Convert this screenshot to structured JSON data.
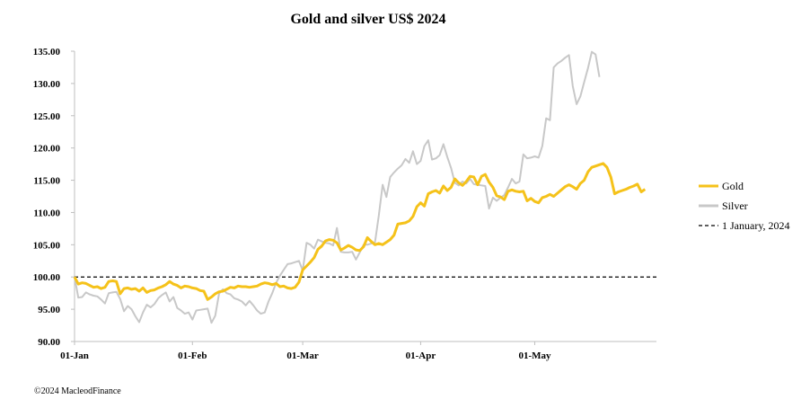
{
  "chart_data": {
    "type": "line",
    "title": "Gold and silver  US$ 2024",
    "xlabel": "",
    "ylabel": "",
    "ylim": [
      90,
      135
    ],
    "yticks": [
      "90.00",
      "95.00",
      "100.00",
      "105.00",
      "110.00",
      "115.00",
      "120.00",
      "125.00",
      "130.00",
      "135.00"
    ],
    "xticks": [
      {
        "label": "01-Jan",
        "day": 1
      },
      {
        "label": "01-Feb",
        "day": 32
      },
      {
        "label": "01-Mar",
        "day": 61
      },
      {
        "label": "01-Apr",
        "day": 92
      },
      {
        "label": "01-May",
        "day": 122
      }
    ],
    "xlim_days": [
      1,
      154
    ],
    "legend_position": "right",
    "reference_line": {
      "name": "1 January, 2024",
      "value": 100,
      "style": "dashed",
      "color": "#000000"
    },
    "series": [
      {
        "name": "Gold",
        "color": "#f5c21a",
        "points": [
          [
            1,
            100.0
          ],
          [
            2,
            98.9
          ],
          [
            3,
            99.1
          ],
          [
            4,
            99.0
          ],
          [
            5,
            98.7
          ],
          [
            6,
            98.4
          ],
          [
            7,
            98.5
          ],
          [
            8,
            98.2
          ],
          [
            9,
            98.4
          ],
          [
            10,
            99.3
          ],
          [
            11,
            99.4
          ],
          [
            12,
            99.3
          ],
          [
            13,
            97.4
          ],
          [
            14,
            98.2
          ],
          [
            15,
            98.3
          ],
          [
            16,
            98.1
          ],
          [
            17,
            98.2
          ],
          [
            18,
            97.8
          ],
          [
            19,
            98.3
          ],
          [
            20,
            97.6
          ],
          [
            21,
            97.9
          ],
          [
            22,
            98.0
          ],
          [
            23,
            98.3
          ],
          [
            24,
            98.5
          ],
          [
            25,
            98.8
          ],
          [
            26,
            99.3
          ],
          [
            27,
            98.9
          ],
          [
            28,
            98.7
          ],
          [
            29,
            98.3
          ],
          [
            30,
            98.6
          ],
          [
            31,
            98.5
          ],
          [
            32,
            98.3
          ],
          [
            33,
            98.2
          ],
          [
            34,
            97.9
          ],
          [
            35,
            97.8
          ],
          [
            36,
            96.5
          ],
          [
            37,
            96.9
          ],
          [
            38,
            97.4
          ],
          [
            39,
            97.7
          ],
          [
            40,
            97.8
          ],
          [
            41,
            98.1
          ],
          [
            42,
            98.4
          ],
          [
            43,
            98.3
          ],
          [
            44,
            98.6
          ],
          [
            45,
            98.5
          ],
          [
            46,
            98.5
          ],
          [
            47,
            98.4
          ],
          [
            48,
            98.5
          ],
          [
            49,
            98.6
          ],
          [
            50,
            98.9
          ],
          [
            51,
            99.1
          ],
          [
            52,
            99.0
          ],
          [
            53,
            98.8
          ],
          [
            54,
            99.0
          ],
          [
            55,
            98.5
          ],
          [
            56,
            98.6
          ],
          [
            57,
            98.3
          ],
          [
            58,
            98.2
          ],
          [
            59,
            98.4
          ],
          [
            60,
            99.2
          ],
          [
            61,
            101.1
          ],
          [
            62,
            101.7
          ],
          [
            63,
            102.3
          ],
          [
            64,
            103.0
          ],
          [
            65,
            104.3
          ],
          [
            66,
            104.8
          ],
          [
            67,
            105.6
          ],
          [
            68,
            105.8
          ],
          [
            69,
            105.7
          ],
          [
            70,
            105.3
          ],
          [
            71,
            104.2
          ],
          [
            72,
            104.5
          ],
          [
            73,
            104.9
          ],
          [
            74,
            104.6
          ],
          [
            75,
            104.2
          ],
          [
            76,
            104.1
          ],
          [
            77,
            104.7
          ],
          [
            78,
            106.1
          ],
          [
            79,
            105.5
          ],
          [
            80,
            105.0
          ],
          [
            81,
            105.2
          ],
          [
            82,
            105.0
          ],
          [
            83,
            105.4
          ],
          [
            84,
            105.8
          ],
          [
            85,
            106.5
          ],
          [
            86,
            108.2
          ],
          [
            87,
            108.3
          ],
          [
            88,
            108.4
          ],
          [
            89,
            108.7
          ],
          [
            90,
            109.4
          ],
          [
            91,
            110.9
          ],
          [
            92,
            111.5
          ],
          [
            93,
            111.0
          ],
          [
            94,
            112.9
          ],
          [
            95,
            113.2
          ],
          [
            96,
            113.4
          ],
          [
            97,
            113.0
          ],
          [
            98,
            114.1
          ],
          [
            99,
            113.4
          ],
          [
            100,
            113.9
          ],
          [
            101,
            115.2
          ],
          [
            102,
            114.6
          ],
          [
            103,
            114.2
          ],
          [
            104,
            114.8
          ],
          [
            105,
            115.6
          ],
          [
            106,
            115.5
          ],
          [
            107,
            114.3
          ],
          [
            108,
            115.6
          ],
          [
            109,
            115.9
          ],
          [
            110,
            114.7
          ],
          [
            111,
            113.9
          ],
          [
            112,
            112.6
          ],
          [
            113,
            112.4
          ],
          [
            114,
            112.0
          ],
          [
            115,
            113.3
          ],
          [
            116,
            113.5
          ],
          [
            117,
            113.3
          ],
          [
            118,
            113.2
          ],
          [
            119,
            113.3
          ],
          [
            120,
            111.8
          ],
          [
            121,
            112.2
          ],
          [
            122,
            111.7
          ],
          [
            123,
            111.5
          ],
          [
            124,
            112.3
          ],
          [
            125,
            112.5
          ],
          [
            126,
            112.8
          ],
          [
            127,
            112.5
          ],
          [
            128,
            113.0
          ],
          [
            129,
            113.5
          ],
          [
            130,
            114.0
          ],
          [
            131,
            114.3
          ],
          [
            132,
            114.0
          ],
          [
            133,
            113.6
          ],
          [
            134,
            114.5
          ],
          [
            135,
            115.0
          ],
          [
            136,
            116.3
          ],
          [
            137,
            117.0
          ],
          [
            138,
            117.2
          ],
          [
            139,
            117.4
          ],
          [
            140,
            117.6
          ],
          [
            141,
            117.0
          ],
          [
            142,
            115.5
          ],
          [
            143,
            112.9
          ],
          [
            144,
            113.2
          ],
          [
            145,
            113.4
          ],
          [
            146,
            113.6
          ],
          [
            147,
            113.9
          ],
          [
            148,
            114.1
          ],
          [
            149,
            114.4
          ],
          [
            150,
            113.2
          ],
          [
            151,
            113.6
          ]
        ]
      },
      {
        "name": "Silver",
        "color": "#c8c8c8",
        "points": [
          [
            1,
            100.0
          ],
          [
            2,
            96.8
          ],
          [
            3,
            96.9
          ],
          [
            4,
            97.6
          ],
          [
            5,
            97.3
          ],
          [
            6,
            97.1
          ],
          [
            7,
            97.0
          ],
          [
            8,
            96.5
          ],
          [
            9,
            95.9
          ],
          [
            10,
            97.5
          ],
          [
            11,
            97.6
          ],
          [
            12,
            97.7
          ],
          [
            13,
            96.6
          ],
          [
            14,
            94.7
          ],
          [
            15,
            95.5
          ],
          [
            16,
            95.0
          ],
          [
            17,
            93.9
          ],
          [
            18,
            93.0
          ],
          [
            19,
            94.5
          ],
          [
            20,
            95.7
          ],
          [
            21,
            95.3
          ],
          [
            22,
            95.8
          ],
          [
            23,
            96.7
          ],
          [
            24,
            97.2
          ],
          [
            25,
            97.6
          ],
          [
            26,
            96.2
          ],
          [
            27,
            96.9
          ],
          [
            28,
            95.2
          ],
          [
            29,
            94.8
          ],
          [
            30,
            94.3
          ],
          [
            31,
            94.5
          ],
          [
            32,
            93.4
          ],
          [
            33,
            94.8
          ],
          [
            34,
            94.9
          ],
          [
            35,
            95.0
          ],
          [
            36,
            95.1
          ],
          [
            37,
            92.9
          ],
          [
            38,
            94.0
          ],
          [
            39,
            97.4
          ],
          [
            40,
            98.1
          ],
          [
            41,
            97.5
          ],
          [
            42,
            97.3
          ],
          [
            43,
            96.7
          ],
          [
            44,
            96.5
          ],
          [
            45,
            96.2
          ],
          [
            46,
            95.6
          ],
          [
            47,
            96.3
          ],
          [
            48,
            95.6
          ],
          [
            49,
            94.8
          ],
          [
            50,
            94.3
          ],
          [
            51,
            94.5
          ],
          [
            52,
            96.2
          ],
          [
            53,
            97.5
          ],
          [
            54,
            99.1
          ],
          [
            55,
            100.2
          ],
          [
            56,
            101.1
          ],
          [
            57,
            102.0
          ],
          [
            58,
            102.1
          ],
          [
            59,
            102.3
          ],
          [
            60,
            102.5
          ],
          [
            61,
            101.0
          ],
          [
            62,
            105.3
          ],
          [
            63,
            105.0
          ],
          [
            64,
            104.4
          ],
          [
            65,
            105.8
          ],
          [
            66,
            105.5
          ],
          [
            67,
            105.3
          ],
          [
            68,
            105.2
          ],
          [
            69,
            104.9
          ],
          [
            70,
            107.6
          ],
          [
            71,
            103.9
          ],
          [
            72,
            103.8
          ],
          [
            73,
            103.8
          ],
          [
            74,
            103.9
          ],
          [
            75,
            102.7
          ],
          [
            76,
            103.8
          ],
          [
            77,
            105.0
          ],
          [
            78,
            105.0
          ],
          [
            79,
            105.2
          ],
          [
            80,
            105.4
          ],
          [
            81,
            109.5
          ],
          [
            82,
            114.3
          ],
          [
            83,
            112.4
          ],
          [
            84,
            115.5
          ],
          [
            85,
            116.2
          ],
          [
            86,
            116.8
          ],
          [
            87,
            117.3
          ],
          [
            88,
            118.3
          ],
          [
            89,
            117.7
          ],
          [
            90,
            119.5
          ],
          [
            91,
            117.5
          ],
          [
            92,
            118.0
          ],
          [
            93,
            120.3
          ],
          [
            94,
            121.2
          ],
          [
            95,
            118.2
          ],
          [
            96,
            118.4
          ],
          [
            97,
            118.9
          ],
          [
            98,
            120.6
          ],
          [
            99,
            118.6
          ],
          [
            100,
            116.9
          ],
          [
            101,
            114.6
          ],
          [
            102,
            114.2
          ],
          [
            103,
            114.8
          ],
          [
            104,
            114.5
          ],
          [
            105,
            115.2
          ],
          [
            106,
            114.4
          ],
          [
            107,
            114.3
          ],
          [
            108,
            114.2
          ],
          [
            109,
            114.1
          ],
          [
            110,
            110.6
          ],
          [
            111,
            112.3
          ],
          [
            112,
            111.8
          ],
          [
            113,
            112.3
          ],
          [
            114,
            112.7
          ],
          [
            115,
            113.9
          ],
          [
            116,
            115.2
          ],
          [
            117,
            114.5
          ],
          [
            118,
            114.8
          ],
          [
            119,
            119.0
          ],
          [
            120,
            118.4
          ],
          [
            121,
            118.5
          ],
          [
            122,
            118.7
          ],
          [
            123,
            118.5
          ],
          [
            124,
            120.3
          ],
          [
            125,
            124.6
          ],
          [
            126,
            124.3
          ],
          [
            127,
            132.5
          ],
          [
            128,
            133.1
          ],
          [
            129,
            133.5
          ],
          [
            130,
            134.0
          ],
          [
            131,
            134.4
          ],
          [
            132,
            129.6
          ],
          [
            133,
            126.8
          ],
          [
            134,
            128.0
          ],
          [
            135,
            130.2
          ],
          [
            136,
            132.4
          ],
          [
            137,
            134.9
          ],
          [
            138,
            134.5
          ],
          [
            139,
            131.0
          ]
        ]
      }
    ],
    "footer": "©2024 MacleodFinance"
  }
}
